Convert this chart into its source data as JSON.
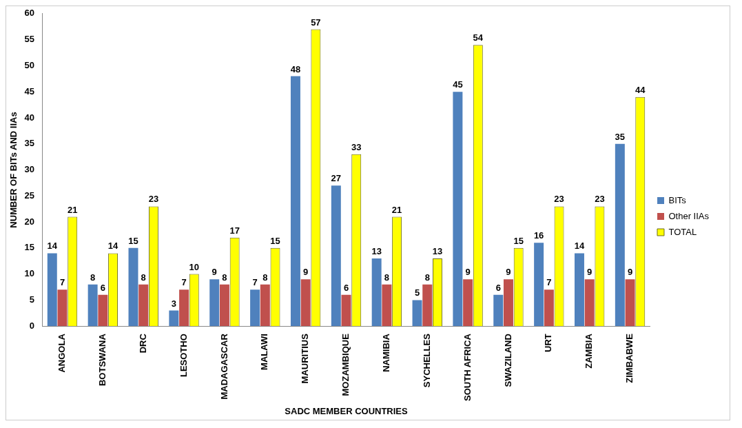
{
  "chart_data": {
    "type": "bar",
    "xlabel": "SADC MEMBER COUNTRIES",
    "ylabel": "NUMBER OF BITs AND IIAs",
    "categories": [
      "ANGOLA",
      "BOTSWANA",
      "DRC",
      "LESOTHO",
      "MADAGASCAR",
      "MALAWI",
      "MAURITIUS",
      "MOZAMBIQUE",
      "NAMIBIA",
      "SYCHELLES",
      "SOUTH AFRICA",
      "SWAZILAND",
      "URT",
      "ZAMBIA",
      "ZIMBABWE"
    ],
    "series": [
      {
        "name": "BITs",
        "color": "#4f81bd",
        "values": [
          14,
          8,
          15,
          3,
          9,
          7,
          48,
          27,
          13,
          5,
          45,
          6,
          16,
          14,
          35
        ]
      },
      {
        "name": "Other IIAs",
        "color": "#c0504d",
        "values": [
          7,
          6,
          8,
          7,
          8,
          8,
          9,
          6,
          8,
          8,
          9,
          9,
          7,
          9,
          9
        ]
      },
      {
        "name": "TOTAL",
        "color": "#ffff00",
        "values": [
          21,
          14,
          23,
          10,
          17,
          15,
          57,
          33,
          21,
          13,
          54,
          15,
          23,
          23,
          44
        ]
      }
    ],
    "ylim": [
      0,
      60
    ],
    "yticks": [
      0,
      5,
      10,
      15,
      20,
      25,
      30,
      35,
      40,
      45,
      50,
      55,
      60
    ],
    "grid": false,
    "legend": "right",
    "data_labels": true
  }
}
